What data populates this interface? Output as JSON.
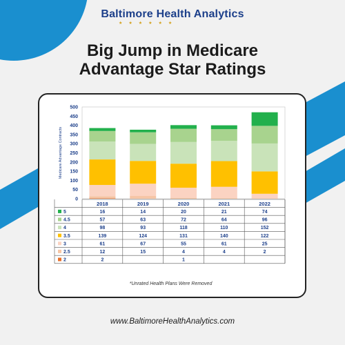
{
  "brand": {
    "name_part1": "Baltimore",
    "name_part2": "Health Analytics",
    "accent": "#1c3f8a",
    "star_color": "#d4a017"
  },
  "title_line1": "Big Jump in Medicare",
  "title_line2": "Advantage Star Ratings",
  "note": "*Unrated Health Plans Were Removed",
  "footer_url": "www.BaltimoreHealthAnalytics.com",
  "colors": {
    "background": "#f1f1f1",
    "decor_blue": "#1a8fcf"
  },
  "chart_data": {
    "type": "bar",
    "stacked": true,
    "ylabel": "Medicare Advantage Contracts",
    "ylim": [
      0,
      500
    ],
    "yticks": [
      0,
      50,
      100,
      150,
      200,
      250,
      300,
      350,
      400,
      450,
      500
    ],
    "categories": [
      "2018",
      "2019",
      "2020",
      "2021",
      "2022"
    ],
    "series": [
      {
        "name": "2",
        "color": "#e8702a",
        "values": [
          2,
          null,
          1,
          null,
          null
        ]
      },
      {
        "name": "2.5",
        "color": "#f6c6a6",
        "values": [
          12,
          15,
          4,
          4,
          2
        ]
      },
      {
        "name": "3",
        "color": "#fbd3c2",
        "values": [
          61,
          67,
          55,
          61,
          25
        ]
      },
      {
        "name": "3.5",
        "color": "#ffc000",
        "values": [
          139,
          124,
          131,
          140,
          122
        ]
      },
      {
        "name": "4",
        "color": "#c9e3b9",
        "values": [
          98,
          93,
          118,
          110,
          152
        ]
      },
      {
        "name": "4.5",
        "color": "#a8d38e",
        "values": [
          57,
          63,
          72,
          64,
          96
        ]
      },
      {
        "name": "5",
        "color": "#22b04c",
        "values": [
          16,
          14,
          20,
          21,
          74
        ]
      }
    ],
    "table_row_order": [
      "5",
      "4.5",
      "4",
      "3.5",
      "3",
      "2.5",
      "2"
    ],
    "grid": false,
    "legend": "data-table"
  }
}
